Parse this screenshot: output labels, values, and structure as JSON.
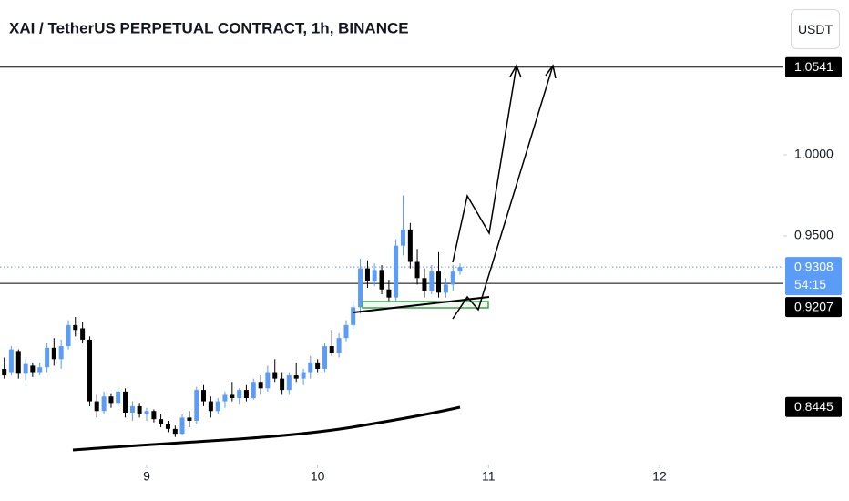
{
  "chart_data": {
    "type": "candlestick",
    "title": "XAI / TetherUS PERPETUAL CONTRACT, 1h, BINANCE",
    "currency": "USDT",
    "up_color": "#5b9cf6",
    "down_color": "#000000",
    "x": [
      8.167,
      8.208,
      8.25,
      8.292,
      8.333,
      8.375,
      8.417,
      8.458,
      8.5,
      8.542,
      8.583,
      8.625,
      8.667,
      8.708,
      8.75,
      8.792,
      8.833,
      8.875,
      8.917,
      8.958,
      9,
      9.042,
      9.083,
      9.125,
      9.167,
      9.208,
      9.25,
      9.292,
      9.333,
      9.375,
      9.417,
      9.458,
      9.5,
      9.542,
      9.583,
      9.625,
      9.667,
      9.708,
      9.75,
      9.792,
      9.833,
      9.875,
      9.917,
      9.958,
      10,
      10.042,
      10.083,
      10.125,
      10.167,
      10.208,
      10.25,
      10.292,
      10.333,
      10.375,
      10.417,
      10.458,
      10.5,
      10.542,
      10.583,
      10.625,
      10.667,
      10.708,
      10.75,
      10.792,
      10.833
    ],
    "open": [
      0.868,
      0.866,
      0.879,
      0.865,
      0.87,
      0.866,
      0.869,
      0.881,
      0.874,
      0.882,
      0.895,
      0.893,
      0.886,
      0.848,
      0.842,
      0.851,
      0.847,
      0.854,
      0.841,
      0.845,
      0.84,
      0.842,
      0.837,
      0.834,
      0.831,
      0.828,
      0.838,
      0.836,
      0.855,
      0.848,
      0.842,
      0.848,
      0.852,
      0.85,
      0.855,
      0.85,
      0.86,
      0.856,
      0.866,
      0.862,
      0.855,
      0.864,
      0.862,
      0.866,
      0.872,
      0.868,
      0.882,
      0.878,
      0.887,
      0.895,
      0.906,
      0.93,
      0.922,
      0.929,
      0.917,
      0.912,
      0.944,
      0.954,
      0.934,
      0.924,
      0.916,
      0.928,
      0.915,
      0.92,
      0.928
    ],
    "high": [
      0.875,
      0.882,
      0.88,
      0.874,
      0.872,
      0.872,
      0.884,
      0.887,
      0.886,
      0.898,
      0.9,
      0.897,
      0.888,
      0.852,
      0.854,
      0.853,
      0.857,
      0.856,
      0.848,
      0.847,
      0.844,
      0.843,
      0.84,
      0.836,
      0.833,
      0.84,
      0.842,
      0.857,
      0.858,
      0.851,
      0.85,
      0.854,
      0.86,
      0.856,
      0.858,
      0.862,
      0.864,
      0.87,
      0.874,
      0.866,
      0.866,
      0.872,
      0.868,
      0.876,
      0.874,
      0.884,
      0.892,
      0.89,
      0.898,
      0.91,
      0.936,
      0.935,
      0.933,
      0.932,
      0.923,
      0.948,
      0.975,
      0.958,
      0.942,
      0.93,
      0.932,
      0.94,
      0.924,
      0.932,
      0.933
    ],
    "low": [
      0.862,
      0.864,
      0.862,
      0.861,
      0.863,
      0.864,
      0.866,
      0.87,
      0.868,
      0.88,
      0.888,
      0.884,
      0.845,
      0.838,
      0.84,
      0.844,
      0.845,
      0.838,
      0.836,
      0.838,
      0.836,
      0.835,
      0.832,
      0.829,
      0.826,
      0.827,
      0.832,
      0.834,
      0.845,
      0.838,
      0.84,
      0.844,
      0.848,
      0.846,
      0.848,
      0.849,
      0.852,
      0.854,
      0.86,
      0.852,
      0.852,
      0.86,
      0.858,
      0.862,
      0.866,
      0.866,
      0.876,
      0.875,
      0.885,
      0.893,
      0.902,
      0.918,
      0.919,
      0.914,
      0.91,
      0.91,
      0.938,
      0.93,
      0.92,
      0.912,
      0.914,
      0.912,
      0.912,
      0.916,
      0.926
    ],
    "close": [
      0.864,
      0.88,
      0.865,
      0.871,
      0.866,
      0.869,
      0.881,
      0.874,
      0.882,
      0.895,
      0.892,
      0.886,
      0.848,
      0.842,
      0.851,
      0.847,
      0.854,
      0.841,
      0.845,
      0.84,
      0.842,
      0.837,
      0.834,
      0.831,
      0.828,
      0.838,
      0.836,
      0.855,
      0.848,
      0.842,
      0.848,
      0.852,
      0.85,
      0.855,
      0.85,
      0.86,
      0.856,
      0.866,
      0.862,
      0.855,
      0.864,
      0.862,
      0.866,
      0.872,
      0.868,
      0.882,
      0.878,
      0.887,
      0.895,
      0.906,
      0.93,
      0.922,
      0.929,
      0.917,
      0.912,
      0.944,
      0.954,
      0.934,
      0.924,
      0.916,
      0.928,
      0.915,
      0.92,
      0.928,
      0.9308
    ],
    "xlim": [
      8.142,
      12.725
    ],
    "xticks": [
      9,
      10,
      11,
      12
    ],
    "ylim": [
      0.809,
      1.0955
    ],
    "yticks": [
      {
        "value": 1,
        "label": "1.0000"
      },
      {
        "value": 0.95,
        "label": "0.9500"
      }
    ],
    "price_lines": [
      {
        "value": 1.0541,
        "color": "#000000",
        "line": "solid"
      },
      {
        "value": 0.9308,
        "color": "#5b9cf6",
        "line": "dotted",
        "countdown": "54:15"
      },
      {
        "value": 0.9207,
        "color": "#000000",
        "line": "solid"
      },
      {
        "value": 0.8445,
        "color": "#000000",
        "line": "none"
      }
    ]
  }
}
